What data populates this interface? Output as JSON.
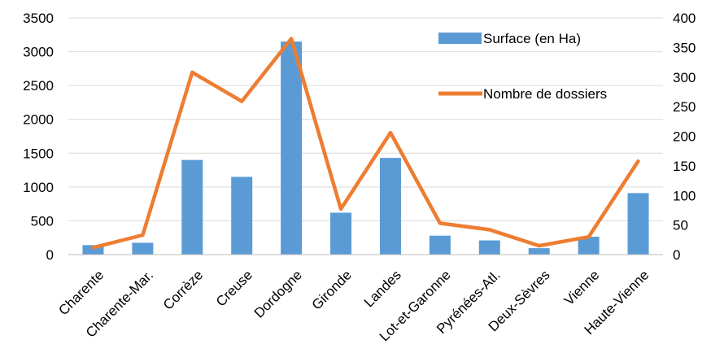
{
  "chart_data": {
    "type": "bar",
    "title": "",
    "xlabel": "",
    "categories": [
      "Charente",
      "Charente-Mar.",
      "Corrèze",
      "Creuse",
      "Dordogne",
      "Gironde",
      "Landes",
      "Lot-et-Garonne",
      "Pyrénées-Atl.",
      "Deux-Sèvres",
      "Vienne",
      "Haute-Vienne"
    ],
    "series": [
      {
        "name": "Surface (en Ha)",
        "type": "bar",
        "axis": "left",
        "color": "#5B9BD5",
        "values": [
          140,
          175,
          1400,
          1150,
          3150,
          620,
          1430,
          280,
          210,
          95,
          265,
          910
        ]
      },
      {
        "name": "Nombre de dossiers",
        "type": "line",
        "axis": "right",
        "color": "#ED7D31",
        "values": [
          12,
          33,
          308,
          259,
          365,
          77,
          206,
          53,
          42,
          15,
          30,
          158
        ]
      }
    ],
    "y_left": {
      "lim": [
        0,
        3500
      ],
      "ticks": [
        "0",
        "500",
        "1000",
        "1500",
        "2000",
        "2500",
        "3000",
        "3500"
      ]
    },
    "y_right": {
      "lim": [
        0,
        400
      ],
      "ticks": [
        "0",
        "50",
        "100",
        "150",
        "200",
        "250",
        "300",
        "350",
        "400"
      ]
    },
    "grid": true,
    "legend": "top-right"
  }
}
